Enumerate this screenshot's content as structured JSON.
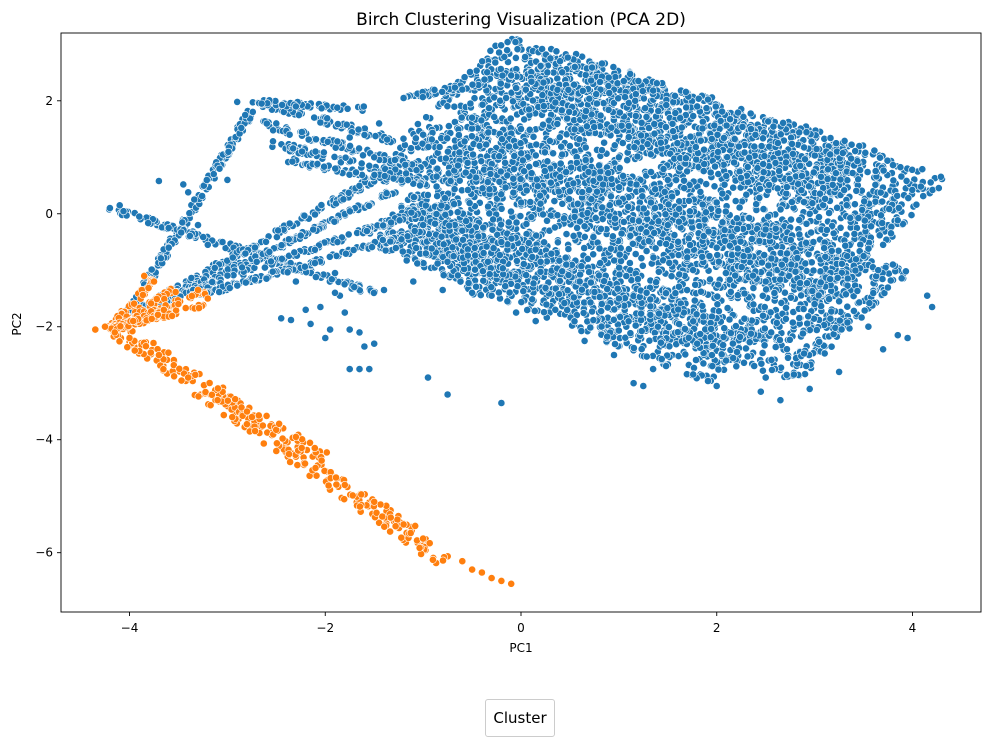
{
  "chart_data": {
    "type": "scatter",
    "title": "Birch Clustering Visualization (PCA 2D)",
    "xlabel": "PC1",
    "ylabel": "PC2",
    "xlim": [
      -4.7,
      4.7
    ],
    "ylim": [
      -7.05,
      3.2
    ],
    "xticks": [
      -4,
      -2,
      0,
      2,
      4
    ],
    "yticks": [
      -6,
      -4,
      -2,
      0,
      2
    ],
    "grid": false,
    "legend": {
      "title": "Cluster",
      "placement": "bottom-center"
    },
    "series": [
      {
        "color": "#1f77b4",
        "points": [
          [
            -3.7,
            0.58
          ],
          [
            -3.45,
            0.52
          ],
          [
            -3.4,
            0.38
          ],
          [
            -2.9,
            1.98
          ],
          [
            -2.65,
            1.95
          ],
          [
            -3.05,
            -0.5
          ],
          [
            -2.85,
            -0.95
          ],
          [
            -2.6,
            -1.15
          ],
          [
            -2.45,
            -1.85
          ],
          [
            -2.35,
            -1.88
          ],
          [
            -2.2,
            -1.7
          ],
          [
            -2.05,
            -1.65
          ],
          [
            -2.15,
            -1.95
          ],
          [
            -2.0,
            -2.2
          ],
          [
            -1.95,
            -2.05
          ],
          [
            -1.8,
            -1.75
          ],
          [
            -1.75,
            -2.05
          ],
          [
            -1.65,
            -2.1
          ],
          [
            -1.85,
            -1.45
          ],
          [
            -1.9,
            -1.05
          ],
          [
            -1.6,
            -2.35
          ],
          [
            -1.5,
            -2.3
          ],
          [
            -1.75,
            -2.75
          ],
          [
            -1.65,
            -2.75
          ],
          [
            -1.55,
            -2.75
          ],
          [
            -0.95,
            -2.9
          ],
          [
            -0.75,
            -3.2
          ],
          [
            -0.2,
            -3.35
          ],
          [
            -0.05,
            -1.75
          ],
          [
            0.15,
            -1.9
          ],
          [
            0.35,
            -1.7
          ],
          [
            0.65,
            -2.25
          ],
          [
            0.95,
            -2.5
          ],
          [
            1.15,
            -3.0
          ],
          [
            1.25,
            -3.05
          ],
          [
            1.35,
            -2.75
          ],
          [
            2.0,
            -3.05
          ],
          [
            2.45,
            -3.15
          ],
          [
            2.65,
            -3.3
          ],
          [
            2.95,
            -3.1
          ],
          [
            3.25,
            -2.8
          ],
          [
            3.7,
            -2.4
          ],
          [
            3.85,
            -2.15
          ],
          [
            3.95,
            -2.2
          ],
          [
            4.15,
            -1.45
          ],
          [
            4.2,
            -1.65
          ],
          [
            3.55,
            -2.0
          ],
          [
            3.25,
            -1.55
          ],
          [
            3.65,
            -1.0
          ],
          [
            3.8,
            -0.9
          ],
          [
            3.7,
            -0.55
          ],
          [
            3.5,
            -0.75
          ],
          [
            2.95,
            0.0
          ],
          [
            2.6,
            0.9
          ],
          [
            2.35,
            1.5
          ],
          [
            1.8,
            1.9
          ],
          [
            1.2,
            2.35
          ],
          [
            0.55,
            2.6
          ],
          [
            0.3,
            2.75
          ],
          [
            0.4,
            2.7
          ],
          [
            -0.1,
            2.45
          ],
          [
            -0.6,
            2.2
          ],
          [
            -1.2,
            2.05
          ],
          [
            -1.45,
            1.6
          ],
          [
            -1.75,
            1.35
          ],
          [
            -2.1,
            1.1
          ],
          [
            -2.3,
            1.9
          ],
          [
            -2.5,
            1.6
          ],
          [
            -3.0,
            0.6
          ],
          [
            -3.3,
            -0.2
          ],
          [
            -3.6,
            -0.6
          ],
          [
            -3.85,
            -1.25
          ],
          [
            -4.0,
            -1.7
          ],
          [
            -4.2,
            0.1
          ],
          [
            -4.1,
            0.15
          ],
          [
            -3.9,
            -0.05
          ],
          [
            -3.6,
            -0.25
          ],
          [
            -3.2,
            -0.55
          ],
          [
            -2.7,
            -0.85
          ],
          [
            -2.3,
            -1.2
          ],
          [
            -1.9,
            -1.4
          ],
          [
            -1.4,
            -1.35
          ],
          [
            -1.1,
            -1.2
          ],
          [
            -0.8,
            -1.35
          ],
          [
            -0.5,
            -1.4
          ],
          [
            -0.3,
            -1.45
          ],
          [
            -1.0,
            -0.2
          ],
          [
            -0.6,
            -0.3
          ],
          [
            -0.2,
            -0.5
          ],
          [
            0.2,
            -0.85
          ],
          [
            0.6,
            -1.2
          ],
          [
            1.0,
            -1.5
          ],
          [
            1.4,
            -2.0
          ],
          [
            1.8,
            -2.3
          ],
          [
            2.2,
            -2.7
          ],
          [
            2.5,
            -2.9
          ],
          [
            0.5,
            0.4
          ],
          [
            1.0,
            0.2
          ],
          [
            1.5,
            -0.2
          ],
          [
            2.0,
            -0.6
          ],
          [
            2.5,
            -1.2
          ],
          [
            3.0,
            -1.6
          ],
          [
            0.0,
            1.5
          ],
          [
            0.5,
            1.2
          ],
          [
            1.0,
            1.0
          ],
          [
            1.5,
            0.6
          ],
          [
            2.0,
            0.2
          ],
          [
            -0.5,
            1.7
          ],
          [
            -1.0,
            1.4
          ],
          [
            -1.5,
            1.0
          ]
        ],
        "regions": [
          {
            "kind": "band",
            "from": [
              -0.8,
              2.05
            ],
            "to": [
              3.75,
              -0.5
            ],
            "width": 2.6
          },
          {
            "kind": "band",
            "from": [
              -1.0,
              0.6
            ],
            "to": [
              3.4,
              -2.0
            ],
            "width": 2.3
          },
          {
            "kind": "band",
            "from": [
              0.0,
              2.45
            ],
            "to": [
              3.4,
              0.6
            ],
            "width": 1.2
          },
          {
            "kind": "band",
            "from": [
              -1.2,
              -0.2
            ],
            "to": [
              2.2,
              -2.6
            ],
            "width": 1.0
          },
          {
            "kind": "band",
            "from": [
              -1.0,
              0.2
            ],
            "to": [
              -0.2,
              -1.4
            ],
            "width": 0.6
          },
          {
            "kind": "line",
            "from": [
              -4.2,
              0.1
            ],
            "to": [
              -1.5,
              -1.4
            ],
            "width": 0.1
          },
          {
            "kind": "line",
            "from": [
              -4.0,
              -1.75
            ],
            "to": [
              -2.7,
              1.98
            ],
            "width": 0.08
          },
          {
            "kind": "line",
            "from": [
              -3.9,
              -1.7
            ],
            "to": [
              -1.2,
              0.9
            ],
            "width": 0.1
          },
          {
            "kind": "line",
            "from": [
              -3.7,
              -1.6
            ],
            "to": [
              -1.3,
              0.4
            ],
            "width": 0.08
          },
          {
            "kind": "line",
            "from": [
              -3.6,
              -1.5
            ],
            "to": [
              -1.1,
              0.0
            ],
            "width": 0.08
          },
          {
            "kind": "line",
            "from": [
              -3.3,
              -1.45
            ],
            "to": [
              -1.0,
              -0.3
            ],
            "width": 0.08
          },
          {
            "kind": "line",
            "from": [
              -2.7,
              1.98
            ],
            "to": [
              -1.3,
              1.3
            ],
            "width": 0.12
          },
          {
            "kind": "line",
            "from": [
              -2.7,
              1.98
            ],
            "to": [
              -1.6,
              1.85
            ],
            "width": 0.1
          },
          {
            "kind": "line",
            "from": [
              -2.65,
              1.6
            ],
            "to": [
              -1.0,
              0.8
            ],
            "width": 0.12
          },
          {
            "kind": "line",
            "from": [
              -2.55,
              1.25
            ],
            "to": [
              -1.0,
              0.6
            ],
            "width": 0.12
          },
          {
            "kind": "line",
            "from": [
              -2.4,
              0.95
            ],
            "to": [
              -1.0,
              0.5
            ],
            "width": 0.1
          },
          {
            "kind": "line",
            "from": [
              -1.2,
              2.05
            ],
            "to": [
              0.0,
              2.45
            ],
            "width": 0.1
          }
        ]
      },
      {
        "color": "#ff7f0e",
        "points": [
          [
            -4.35,
            -2.05
          ],
          [
            -4.25,
            -2.0
          ],
          [
            -4.15,
            -2.1
          ],
          [
            -3.95,
            -2.25
          ],
          [
            -3.85,
            -1.1
          ],
          [
            -3.75,
            -1.2
          ],
          [
            -3.65,
            -1.7
          ],
          [
            -3.5,
            -1.6
          ],
          [
            -3.3,
            -1.35
          ],
          [
            -3.2,
            -1.5
          ],
          [
            -2.95,
            -3.6
          ],
          [
            -2.75,
            -3.6
          ],
          [
            -2.3,
            -3.95
          ],
          [
            -1.0,
            -5.75
          ],
          [
            -0.6,
            -6.15
          ],
          [
            -0.5,
            -6.3
          ],
          [
            -0.4,
            -6.35
          ],
          [
            -0.3,
            -6.45
          ],
          [
            -0.2,
            -6.5
          ],
          [
            -0.1,
            -6.55
          ],
          [
            -1.2,
            -5.5
          ],
          [
            -1.5,
            -5.1
          ],
          [
            -1.8,
            -4.8
          ],
          [
            -2.1,
            -4.5
          ],
          [
            -2.5,
            -4.2
          ],
          [
            -2.8,
            -3.5
          ],
          [
            -3.1,
            -3.3
          ],
          [
            -3.4,
            -2.9
          ],
          [
            -3.7,
            -2.5
          ],
          [
            -4.0,
            -2.2
          ]
        ],
        "regions": [
          {
            "kind": "band",
            "from": [
              -4.1,
              -2.05
            ],
            "to": [
              -0.75,
              -6.15
            ],
            "width": 0.28
          },
          {
            "kind": "band",
            "from": [
              -3.2,
              -3.05
            ],
            "to": [
              -2.0,
              -4.35
            ],
            "width": 0.2
          },
          {
            "kind": "line",
            "from": [
              -4.2,
              -2.05
            ],
            "to": [
              -3.75,
              -1.15
            ],
            "width": 0.08
          },
          {
            "kind": "line",
            "from": [
              -4.2,
              -2.05
            ],
            "to": [
              -3.55,
              -1.35
            ],
            "width": 0.08
          },
          {
            "kind": "line",
            "from": [
              -4.2,
              -2.05
            ],
            "to": [
              -3.2,
              -1.35
            ],
            "width": 0.08
          },
          {
            "kind": "line",
            "from": [
              -4.2,
              -2.05
            ],
            "to": [
              -3.2,
              -1.6
            ],
            "width": 0.08
          },
          {
            "kind": "line",
            "from": [
              -4.2,
              -2.05
            ],
            "to": [
              -3.7,
              -1.8
            ],
            "width": 0.08
          }
        ]
      }
    ]
  }
}
